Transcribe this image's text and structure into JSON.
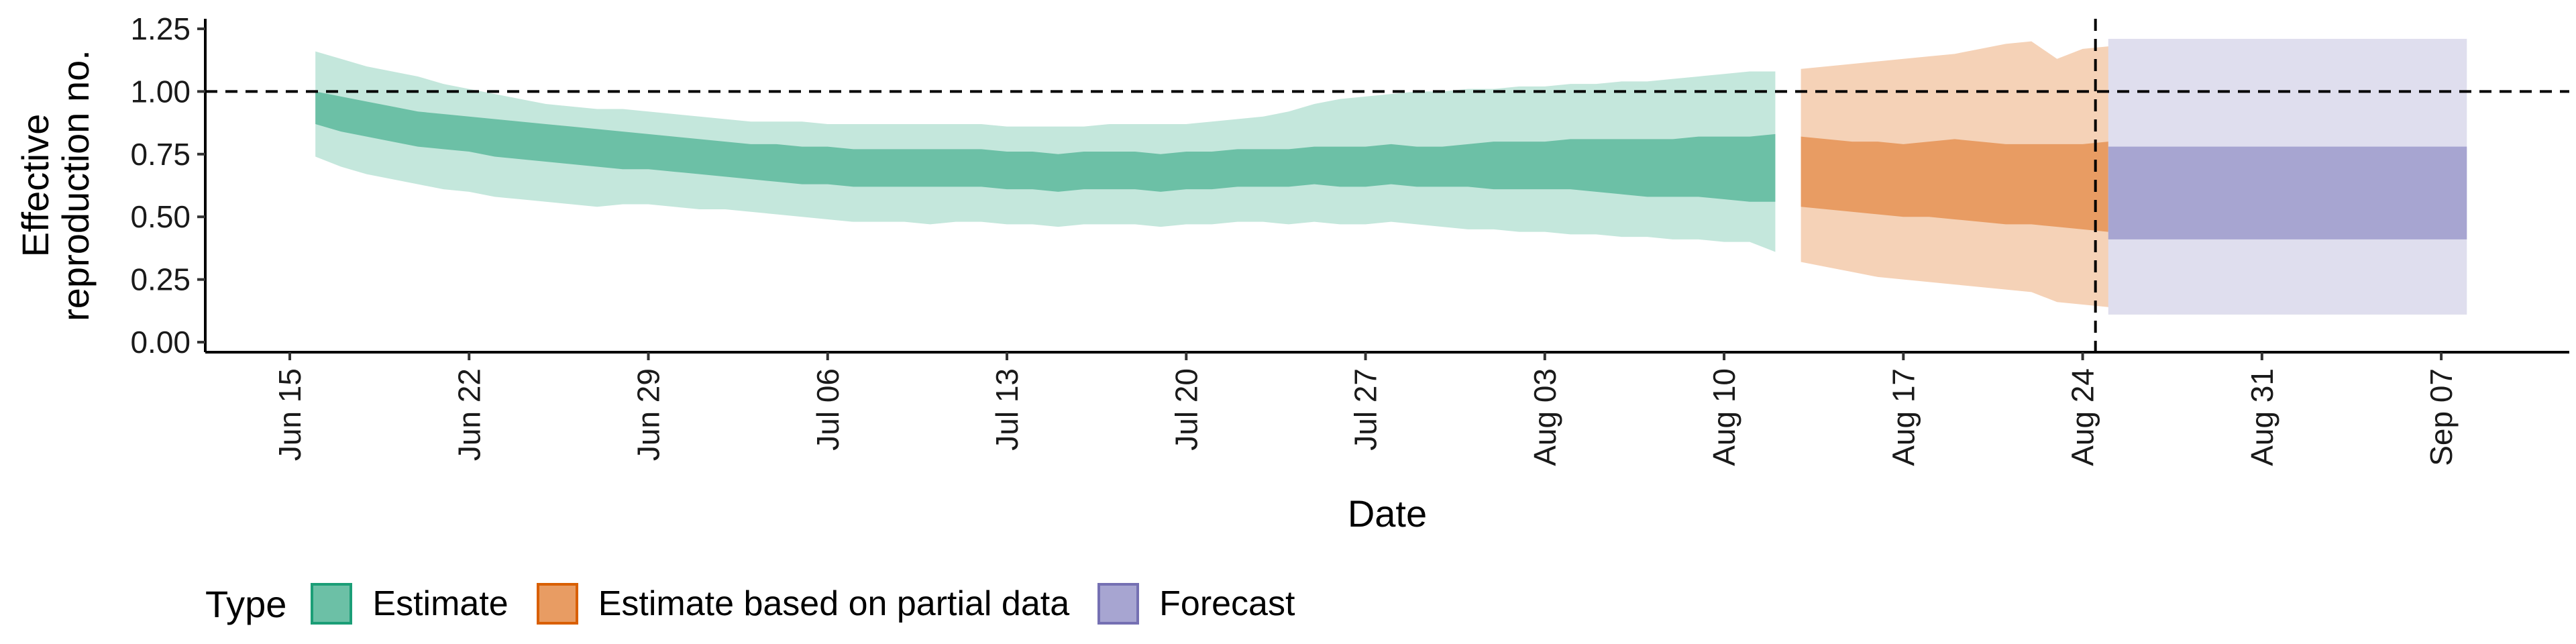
{
  "chart_data": {
    "type": "area",
    "xlabel": "Date",
    "ylabel_lines": [
      "Effective",
      "reproduction no."
    ],
    "ylim": [
      -0.04,
      1.29
    ],
    "yticks": [
      0.0,
      0.25,
      0.5,
      0.75,
      1.0,
      1.25
    ],
    "ytick_labels": [
      "0.00",
      "0.25",
      "0.50",
      "0.75",
      "1.00",
      "1.25"
    ],
    "xlim_days": [
      -3.3,
      89
    ],
    "xticks": [
      {
        "label": "Jun 15",
        "day": 0
      },
      {
        "label": "Jun 22",
        "day": 7
      },
      {
        "label": "Jun 29",
        "day": 14
      },
      {
        "label": "Jul 06",
        "day": 21
      },
      {
        "label": "Jul 13",
        "day": 28
      },
      {
        "label": "Jul 20",
        "day": 35
      },
      {
        "label": "Jul 27",
        "day": 42
      },
      {
        "label": "Aug 03",
        "day": 49
      },
      {
        "label": "Aug 10",
        "day": 56
      },
      {
        "label": "Aug 17",
        "day": 63
      },
      {
        "label": "Aug 24",
        "day": 70
      },
      {
        "label": "Aug 31",
        "day": 77
      },
      {
        "label": "Sep 07",
        "day": 84
      }
    ],
    "reference_line_y": 1.0,
    "forecast_start_day": 70.5,
    "colors": {
      "estimate_inner": "#6cc0a6",
      "estimate_outer": "#c4e7dc",
      "estimate_border": "#1b9e77",
      "partial_inner": "#e89c63",
      "partial_outer": "#f5d2b7",
      "partial_border": "#d95f02",
      "forecast_inner": "#a7a5d1",
      "forecast_outer": "#dfdeee",
      "forecast_border": "#7570b3"
    },
    "series": [
      {
        "name": "Estimate",
        "start_day": 1,
        "lower90": [
          0.74,
          0.7,
          0.67,
          0.65,
          0.63,
          0.61,
          0.6,
          0.58,
          0.57,
          0.56,
          0.55,
          0.54,
          0.55,
          0.55,
          0.54,
          0.53,
          0.53,
          0.52,
          0.51,
          0.5,
          0.49,
          0.48,
          0.48,
          0.48,
          0.47,
          0.48,
          0.48,
          0.47,
          0.47,
          0.46,
          0.47,
          0.47,
          0.47,
          0.46,
          0.47,
          0.47,
          0.48,
          0.48,
          0.47,
          0.48,
          0.47,
          0.47,
          0.48,
          0.47,
          0.46,
          0.45,
          0.45,
          0.44,
          0.44,
          0.43,
          0.43,
          0.42,
          0.42,
          0.41,
          0.41,
          0.4,
          0.4,
          0.36
        ],
        "lower50": [
          0.87,
          0.84,
          0.82,
          0.8,
          0.78,
          0.77,
          0.76,
          0.74,
          0.73,
          0.72,
          0.71,
          0.7,
          0.69,
          0.69,
          0.68,
          0.67,
          0.66,
          0.65,
          0.64,
          0.63,
          0.63,
          0.62,
          0.62,
          0.62,
          0.62,
          0.62,
          0.62,
          0.61,
          0.61,
          0.6,
          0.61,
          0.61,
          0.61,
          0.6,
          0.61,
          0.61,
          0.62,
          0.62,
          0.62,
          0.63,
          0.62,
          0.62,
          0.63,
          0.62,
          0.62,
          0.62,
          0.61,
          0.61,
          0.61,
          0.61,
          0.6,
          0.59,
          0.58,
          0.58,
          0.58,
          0.57,
          0.56,
          0.56
        ],
        "upper50": [
          1.0,
          0.98,
          0.96,
          0.94,
          0.92,
          0.91,
          0.9,
          0.89,
          0.88,
          0.87,
          0.86,
          0.85,
          0.84,
          0.83,
          0.82,
          0.81,
          0.8,
          0.79,
          0.79,
          0.78,
          0.78,
          0.77,
          0.77,
          0.77,
          0.77,
          0.77,
          0.77,
          0.76,
          0.76,
          0.75,
          0.76,
          0.76,
          0.76,
          0.75,
          0.76,
          0.76,
          0.77,
          0.77,
          0.77,
          0.78,
          0.78,
          0.78,
          0.79,
          0.78,
          0.78,
          0.79,
          0.8,
          0.8,
          0.8,
          0.81,
          0.81,
          0.81,
          0.81,
          0.81,
          0.82,
          0.82,
          0.82,
          0.83
        ],
        "upper90": [
          1.16,
          1.13,
          1.1,
          1.08,
          1.06,
          1.03,
          1.01,
          0.99,
          0.97,
          0.95,
          0.94,
          0.93,
          0.93,
          0.92,
          0.91,
          0.9,
          0.89,
          0.88,
          0.88,
          0.88,
          0.87,
          0.87,
          0.87,
          0.87,
          0.87,
          0.87,
          0.87,
          0.86,
          0.86,
          0.86,
          0.86,
          0.87,
          0.87,
          0.87,
          0.87,
          0.88,
          0.89,
          0.9,
          0.92,
          0.95,
          0.97,
          0.98,
          0.99,
          1.0,
          1.0,
          1.01,
          1.01,
          1.02,
          1.02,
          1.03,
          1.03,
          1.04,
          1.04,
          1.05,
          1.06,
          1.07,
          1.08,
          1.08
        ]
      },
      {
        "name": "Estimate based on partial data",
        "start_day": 59,
        "lower90": [
          0.32,
          0.3,
          0.28,
          0.26,
          0.25,
          0.24,
          0.23,
          0.22,
          0.21,
          0.2,
          0.16,
          0.15,
          0.14,
          0.12,
          0.11
        ],
        "lower50": [
          0.54,
          0.53,
          0.52,
          0.51,
          0.5,
          0.5,
          0.49,
          0.48,
          0.47,
          0.47,
          0.46,
          0.45,
          0.44,
          0.42,
          0.41
        ],
        "upper50": [
          0.82,
          0.81,
          0.8,
          0.8,
          0.79,
          0.8,
          0.81,
          0.8,
          0.79,
          0.79,
          0.79,
          0.79,
          0.8,
          0.79,
          0.78
        ],
        "upper90": [
          1.09,
          1.1,
          1.11,
          1.12,
          1.13,
          1.14,
          1.15,
          1.17,
          1.19,
          1.2,
          1.13,
          1.17,
          1.18,
          1.19,
          1.2
        ]
      },
      {
        "name": "Forecast",
        "start_day": 71,
        "end_day": 85,
        "lower90": 0.11,
        "lower50": 0.41,
        "upper50": 0.78,
        "upper90": 1.21
      }
    ]
  },
  "legend": {
    "title": "Type",
    "items": [
      "Estimate",
      "Estimate based on partial data",
      "Forecast"
    ]
  }
}
